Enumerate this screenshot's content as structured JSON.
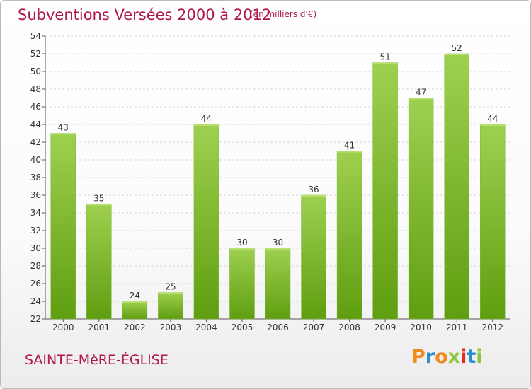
{
  "header": {
    "title": "Subventions Versées 2000 à 2012",
    "subtitle": "(en milliers d'€)"
  },
  "footer": {
    "commune": "SAINTE-MèRE-ÉGLISE",
    "logo": "Proxiti",
    "logo_colors": [
      "#f08a1c",
      "#2a8fd0",
      "#f08a1c",
      "#8cc63f",
      "#e0301e",
      "#2a8fd0",
      "#8cc63f"
    ]
  },
  "colors": {
    "bar_top": "#9ed04f",
    "bar_bottom": "#5f9e10",
    "title": "#b0174c"
  },
  "chart_data": {
    "type": "bar",
    "title": "Subventions Versées 2000 à 2012",
    "subtitle": "(en milliers d'€)",
    "categories": [
      "2000",
      "2001",
      "2002",
      "2003",
      "2004",
      "2005",
      "2006",
      "2007",
      "2008",
      "2009",
      "2010",
      "2011",
      "2012"
    ],
    "values": [
      43,
      35,
      24,
      25,
      44,
      30,
      30,
      36,
      41,
      51,
      47,
      52,
      44
    ],
    "ylim": [
      22,
      54
    ],
    "yticks": [
      22,
      24,
      26,
      28,
      30,
      32,
      34,
      36,
      38,
      40,
      42,
      44,
      46,
      48,
      50,
      52,
      54
    ],
    "grid": true,
    "legend": "none"
  }
}
